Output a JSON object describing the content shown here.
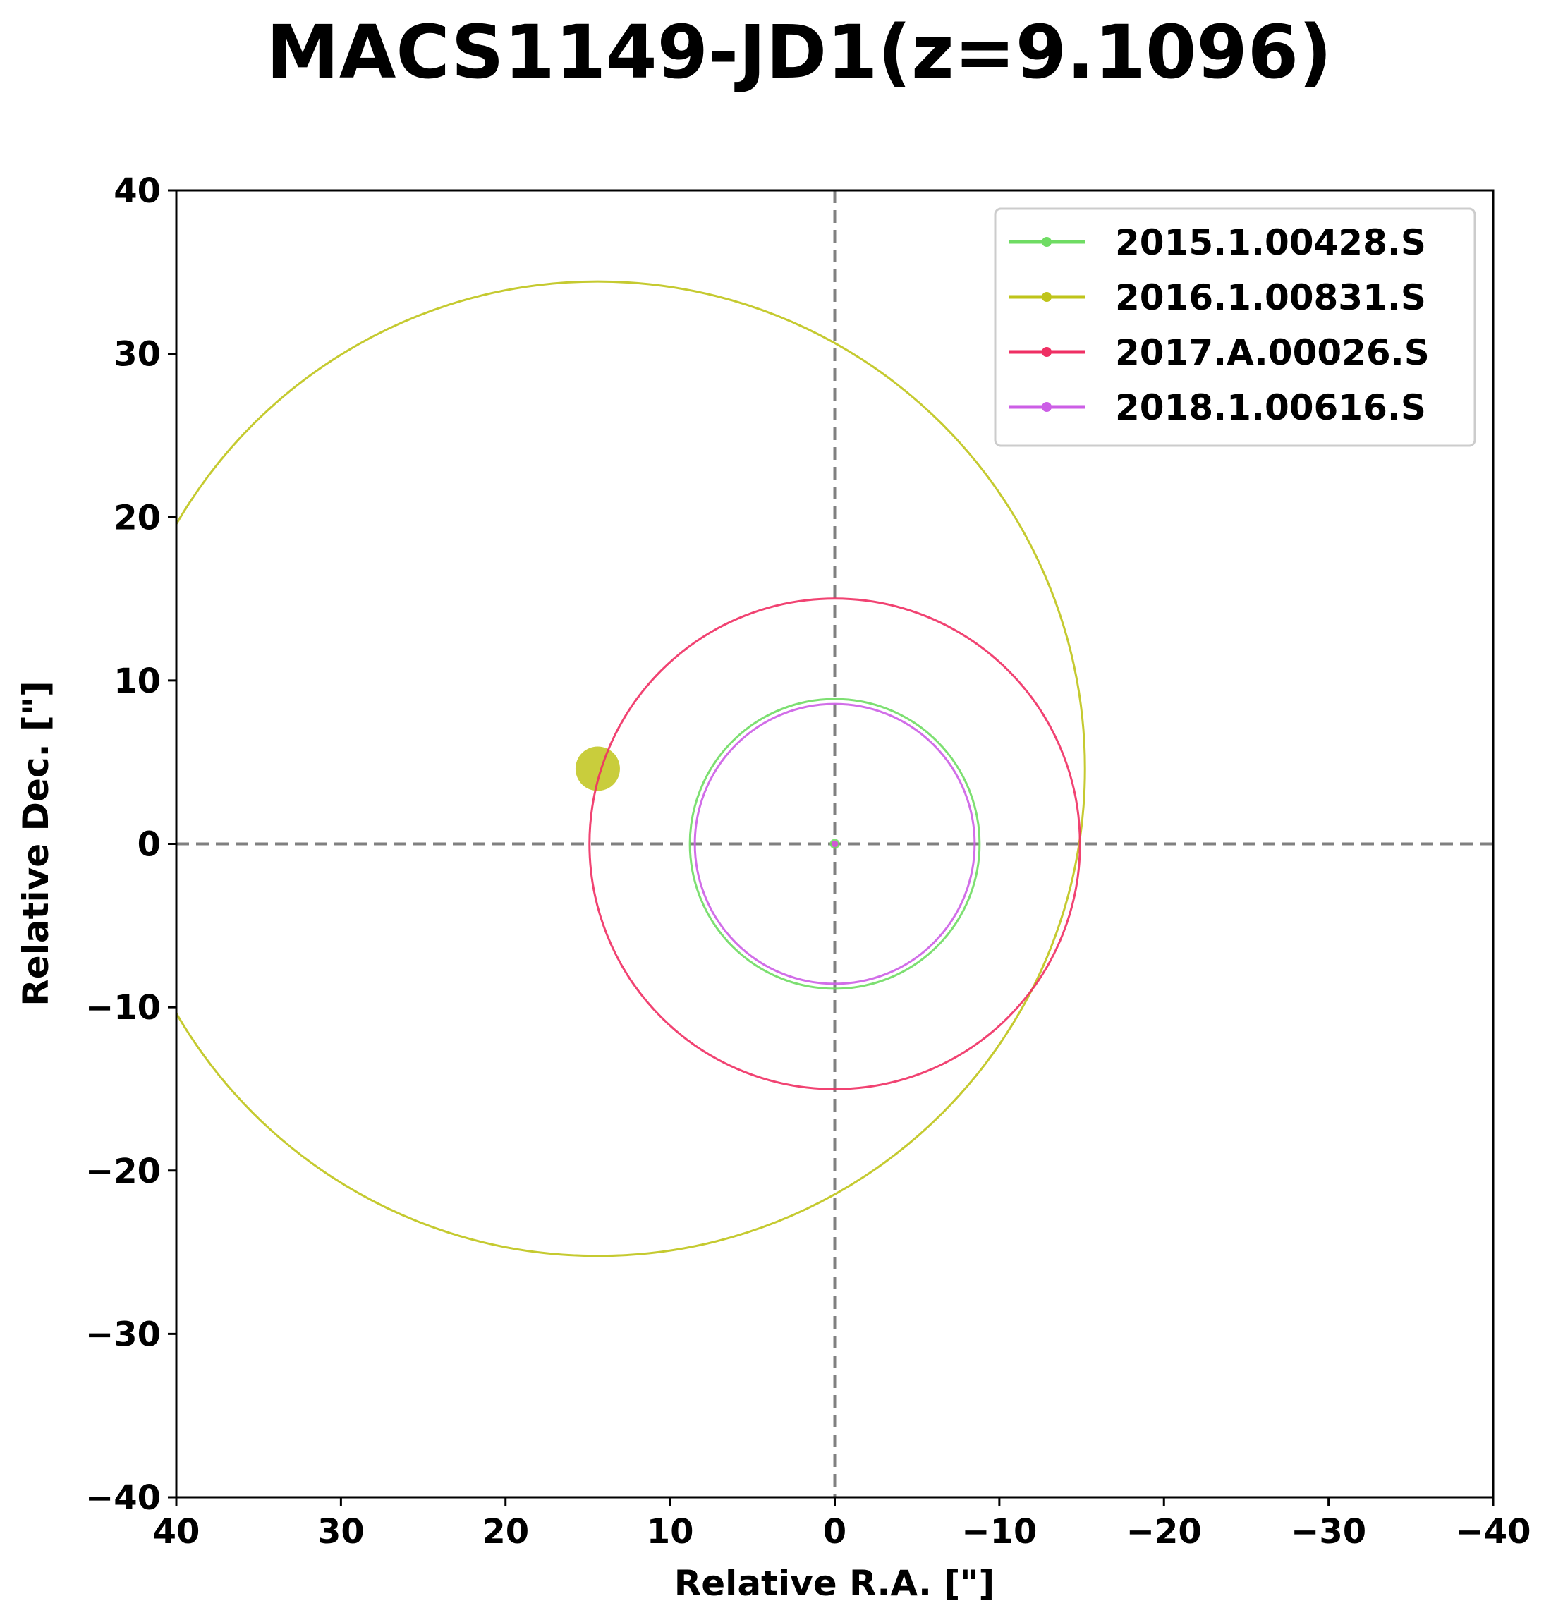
{
  "chart_data": {
    "type": "scatter",
    "title": "MACS1149-JD1(z=9.1096)",
    "xlabel": "Relative R.A. [\"]",
    "ylabel": "Relative Dec. [\"]",
    "xlim": [
      40,
      -40
    ],
    "ylim": [
      -40,
      40
    ],
    "x_ticks": [
      40,
      30,
      20,
      10,
      0,
      -10,
      -20,
      -30,
      -40
    ],
    "y_ticks": [
      -40,
      -30,
      -20,
      -10,
      0,
      10,
      20,
      30,
      40
    ],
    "x_tick_labels": [
      "40",
      "30",
      "20",
      "10",
      "0",
      "−10",
      "−20",
      "−30",
      "−40"
    ],
    "y_tick_labels": [
      "−40",
      "−30",
      "−20",
      "−10",
      "0",
      "10",
      "20",
      "30",
      "40"
    ],
    "grid": false,
    "reference_lines": {
      "x": 0,
      "y": 0,
      "style": "dashed",
      "color": "#808080"
    },
    "legend": {
      "placement": "upper right"
    },
    "series": [
      {
        "name": "2015.1.00428.S",
        "color": "#6fdc63",
        "center": [
          0.0,
          0.0
        ],
        "radius": 8.8,
        "marker_size": 0.3
      },
      {
        "name": "2016.1.00831.S",
        "color": "#bfc41a",
        "center": [
          14.4,
          4.6
        ],
        "radius": 29.6,
        "marker_size": 1.35
      },
      {
        "name": "2017.A.00026.S",
        "color": "#ef2f63",
        "center": [
          0.0,
          0.0
        ],
        "radius": 14.9,
        "marker_size": 0.2
      },
      {
        "name": "2018.1.00616.S",
        "color": "#cc5ee6",
        "center": [
          0.0,
          0.0
        ],
        "radius": 8.5,
        "marker_size": 0.2
      }
    ]
  }
}
